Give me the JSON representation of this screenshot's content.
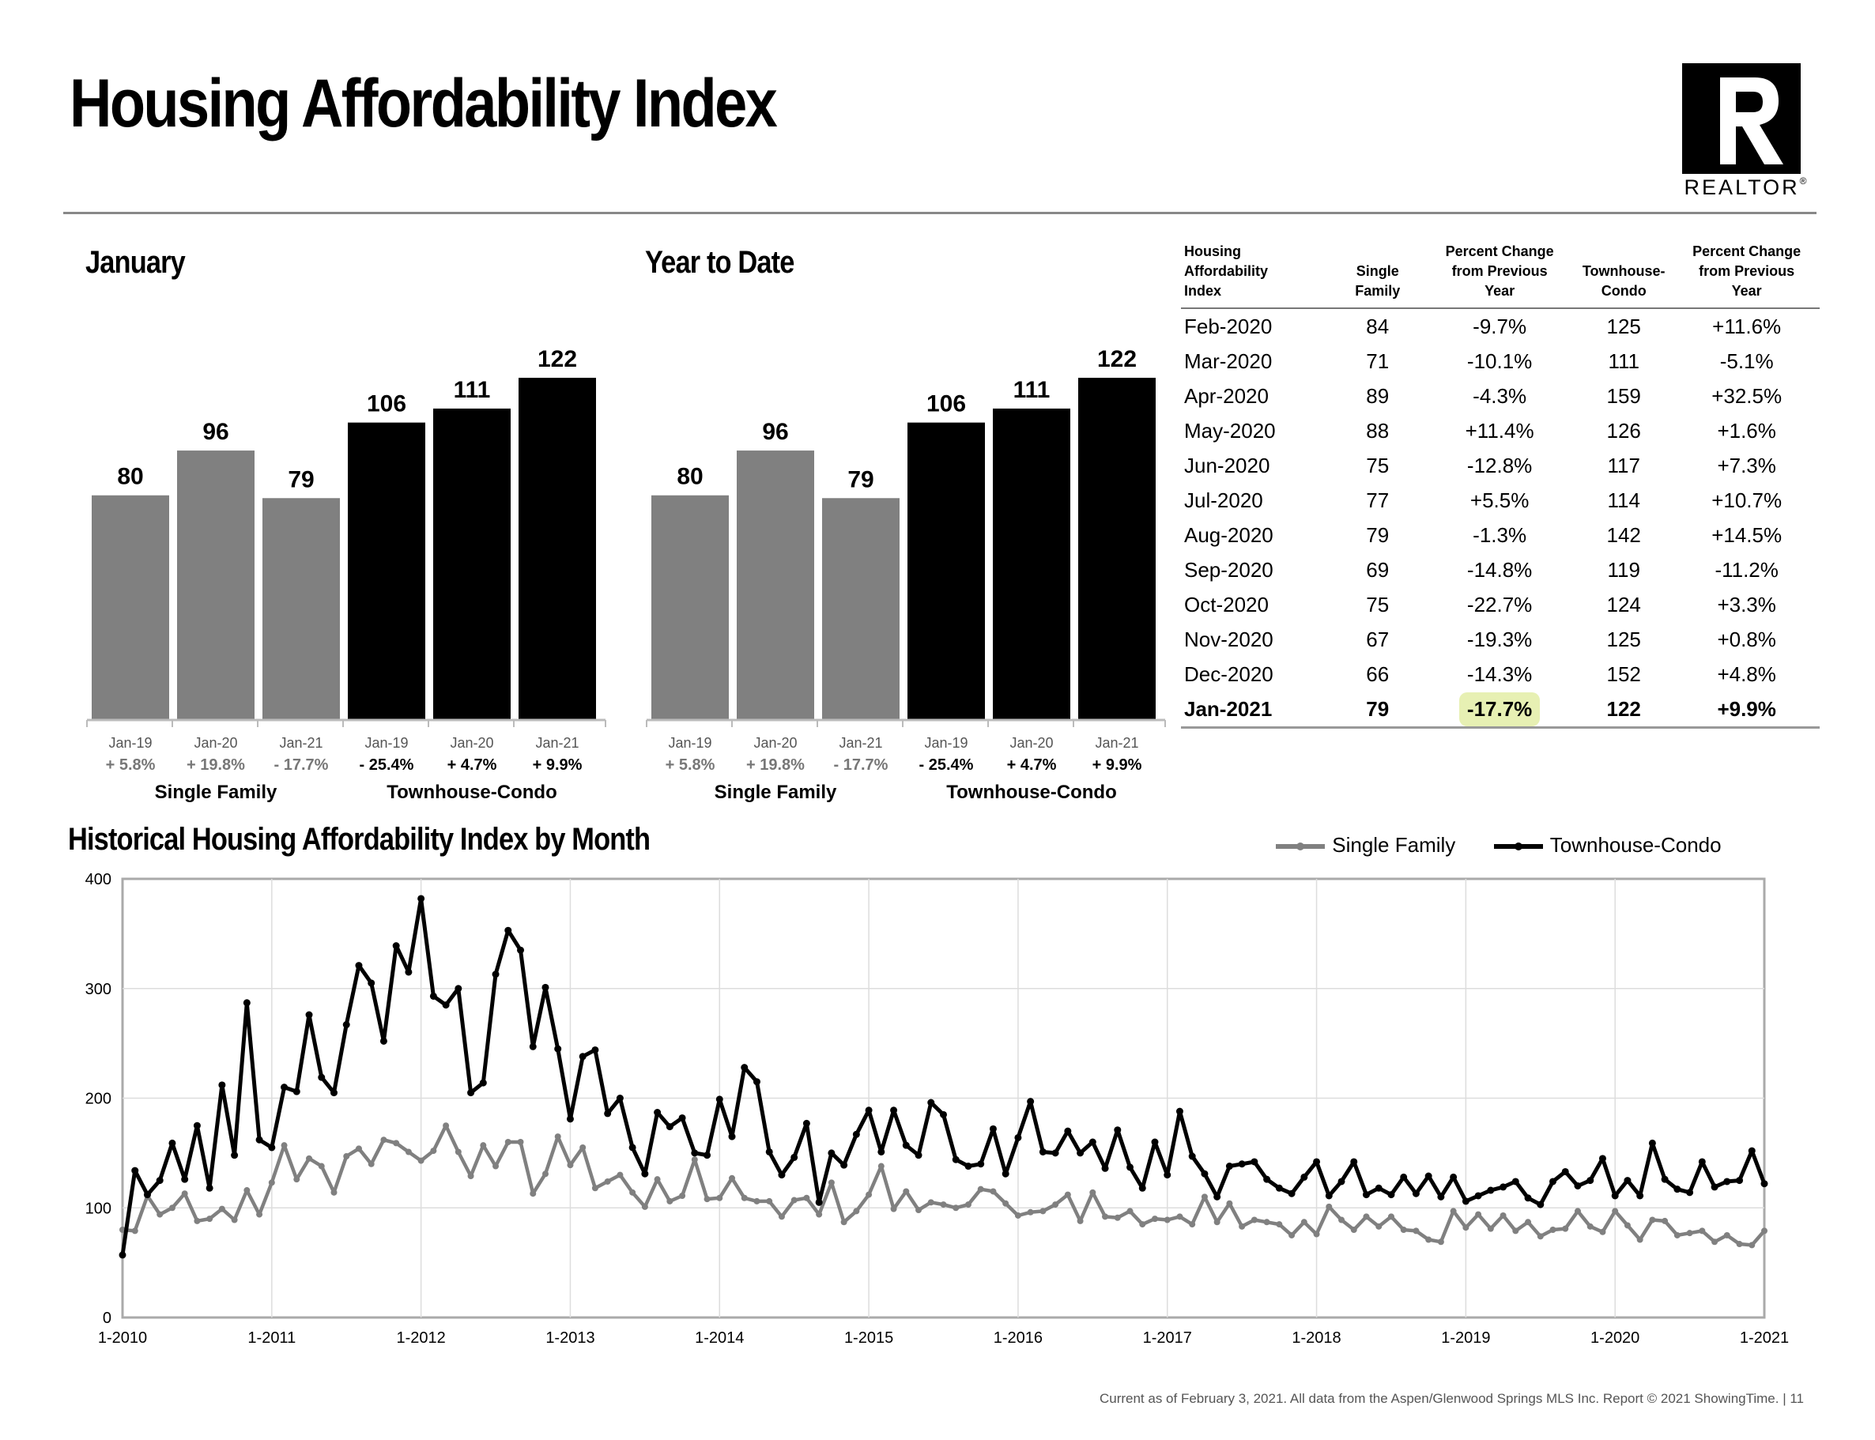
{
  "header": {
    "title": "Housing Affordability Index",
    "logo_text": "REALTOR",
    "logo_mark": "®"
  },
  "colors": {
    "single_family": "#808080",
    "townhouse_condo": "#000000",
    "highlight": "#e7f0b3"
  },
  "footer": {
    "note": "Current as of February 3, 2021.  All data from the Aspen/Glenwood Springs MLS Inc. Report © 2021 ShowingTime.  |  11"
  },
  "table": {
    "headers": {
      "index": [
        "Housing",
        "Affordability",
        "Index"
      ],
      "single": [
        "Single",
        "Family"
      ],
      "pct1": [
        "Percent Change",
        "from Previous",
        "Year"
      ],
      "town": [
        "Townhouse-",
        "Condo"
      ],
      "pct2": [
        "Percent Change",
        "from Previous",
        "Year"
      ]
    },
    "rows": [
      {
        "month": "Feb-2020",
        "sf": "84",
        "sf_pct": "-9.7%",
        "tc": "125",
        "tc_pct": "+11.6%"
      },
      {
        "month": "Mar-2020",
        "sf": "71",
        "sf_pct": "-10.1%",
        "tc": "111",
        "tc_pct": "-5.1%"
      },
      {
        "month": "Apr-2020",
        "sf": "89",
        "sf_pct": "-4.3%",
        "tc": "159",
        "tc_pct": "+32.5%"
      },
      {
        "month": "May-2020",
        "sf": "88",
        "sf_pct": "+11.4%",
        "tc": "126",
        "tc_pct": "+1.6%"
      },
      {
        "month": "Jun-2020",
        "sf": "75",
        "sf_pct": "-12.8%",
        "tc": "117",
        "tc_pct": "+7.3%"
      },
      {
        "month": "Jul-2020",
        "sf": "77",
        "sf_pct": "+5.5%",
        "tc": "114",
        "tc_pct": "+10.7%"
      },
      {
        "month": "Aug-2020",
        "sf": "79",
        "sf_pct": "-1.3%",
        "tc": "142",
        "tc_pct": "+14.5%"
      },
      {
        "month": "Sep-2020",
        "sf": "69",
        "sf_pct": "-14.8%",
        "tc": "119",
        "tc_pct": "-11.2%"
      },
      {
        "month": "Oct-2020",
        "sf": "75",
        "sf_pct": "-22.7%",
        "tc": "124",
        "tc_pct": "+3.3%"
      },
      {
        "month": "Nov-2020",
        "sf": "67",
        "sf_pct": "-19.3%",
        "tc": "125",
        "tc_pct": "+0.8%"
      },
      {
        "month": "Dec-2020",
        "sf": "66",
        "sf_pct": "-14.3%",
        "tc": "152",
        "tc_pct": "+4.8%"
      },
      {
        "month": "Jan-2021",
        "sf": "79",
        "sf_pct": "-17.7%",
        "tc": "122",
        "tc_pct": "+9.9%"
      }
    ]
  },
  "chart_data": [
    {
      "type": "bar",
      "title": "January",
      "categories": [
        "Jan-19",
        "Jan-20",
        "Jan-21",
        "Jan-19",
        "Jan-20",
        "Jan-21"
      ],
      "values": [
        80,
        96,
        79,
        106,
        111,
        122
      ],
      "changes": [
        "+ 5.8%",
        "+ 19.8%",
        "- 17.7%",
        "- 25.4%",
        "+ 4.7%",
        "+ 9.9%"
      ],
      "groups": [
        "Single Family",
        "Townhouse-Condo"
      ],
      "ylim": [
        0,
        122
      ]
    },
    {
      "type": "bar",
      "title": "Year to Date",
      "categories": [
        "Jan-19",
        "Jan-20",
        "Jan-21",
        "Jan-19",
        "Jan-20",
        "Jan-21"
      ],
      "values": [
        80,
        96,
        79,
        106,
        111,
        122
      ],
      "changes": [
        "+ 5.8%",
        "+ 19.8%",
        "- 17.7%",
        "- 25.4%",
        "+ 4.7%",
        "+ 9.9%"
      ],
      "groups": [
        "Single Family",
        "Townhouse-Condo"
      ],
      "ylim": [
        0,
        122
      ]
    },
    {
      "type": "line",
      "title": "Historical Housing Affordability Index by Month",
      "x_ticks": [
        "1-2010",
        "1-2011",
        "1-2012",
        "1-2013",
        "1-2014",
        "1-2015",
        "1-2016",
        "1-2017",
        "1-2018",
        "1-2019",
        "1-2020",
        "1-2021"
      ],
      "y_ticks": [
        0,
        100,
        200,
        300,
        400
      ],
      "ylim": [
        0,
        400
      ],
      "grid": true,
      "legend": "top-right",
      "x_start": "2010-01",
      "series": [
        {
          "name": "Single Family",
          "values": [
            80,
            79,
            111,
            94,
            100,
            113,
            88,
            90,
            99,
            89,
            116,
            94,
            123,
            157,
            126,
            145,
            138,
            114,
            147,
            154,
            140,
            162,
            159,
            151,
            143,
            152,
            175,
            151,
            129,
            157,
            138,
            160,
            160,
            113,
            131,
            165,
            139,
            155,
            118,
            124,
            130,
            114,
            101,
            126,
            106,
            111,
            144,
            108,
            109,
            127,
            109,
            106,
            106,
            92,
            107,
            109,
            94,
            123,
            87,
            97,
            112,
            138,
            99,
            115,
            98,
            105,
            103,
            100,
            103,
            117,
            115,
            104,
            93,
            96,
            97,
            103,
            112,
            88,
            114,
            92,
            91,
            97,
            85,
            90,
            89,
            92,
            85,
            110,
            87,
            104,
            83,
            89,
            87,
            85,
            75,
            87,
            76,
            101,
            89,
            80,
            92,
            83,
            92,
            80,
            79,
            71,
            69,
            97,
            82,
            94,
            81,
            93,
            79,
            87,
            74,
            80,
            81,
            97,
            83,
            78,
            97,
            84,
            71,
            89,
            88,
            75,
            77,
            79,
            69,
            75,
            67,
            66,
            79
          ]
        },
        {
          "name": "Townhouse-Condo",
          "values": [
            57,
            134,
            112,
            125,
            159,
            126,
            175,
            118,
            212,
            148,
            287,
            162,
            155,
            210,
            206,
            276,
            219,
            205,
            267,
            321,
            305,
            252,
            339,
            315,
            382,
            293,
            285,
            300,
            205,
            214,
            313,
            353,
            335,
            247,
            301,
            245,
            181,
            238,
            244,
            186,
            200,
            155,
            131,
            187,
            174,
            182,
            150,
            148,
            199,
            165,
            228,
            215,
            151,
            130,
            146,
            177,
            105,
            150,
            139,
            167,
            189,
            151,
            189,
            157,
            148,
            196,
            185,
            144,
            138,
            140,
            172,
            131,
            164,
            197,
            151,
            150,
            170,
            150,
            160,
            136,
            171,
            137,
            118,
            160,
            130,
            188,
            147,
            131,
            110,
            138,
            140,
            142,
            126,
            118,
            113,
            128,
            142,
            111,
            124,
            142,
            112,
            118,
            112,
            128,
            113,
            129,
            110,
            128,
            106,
            111,
            116,
            119,
            124,
            109,
            103,
            124,
            133,
            120,
            125,
            145,
            111,
            125,
            111,
            159,
            126,
            117,
            114,
            142,
            119,
            124,
            125,
            152,
            122
          ]
        }
      ]
    }
  ]
}
